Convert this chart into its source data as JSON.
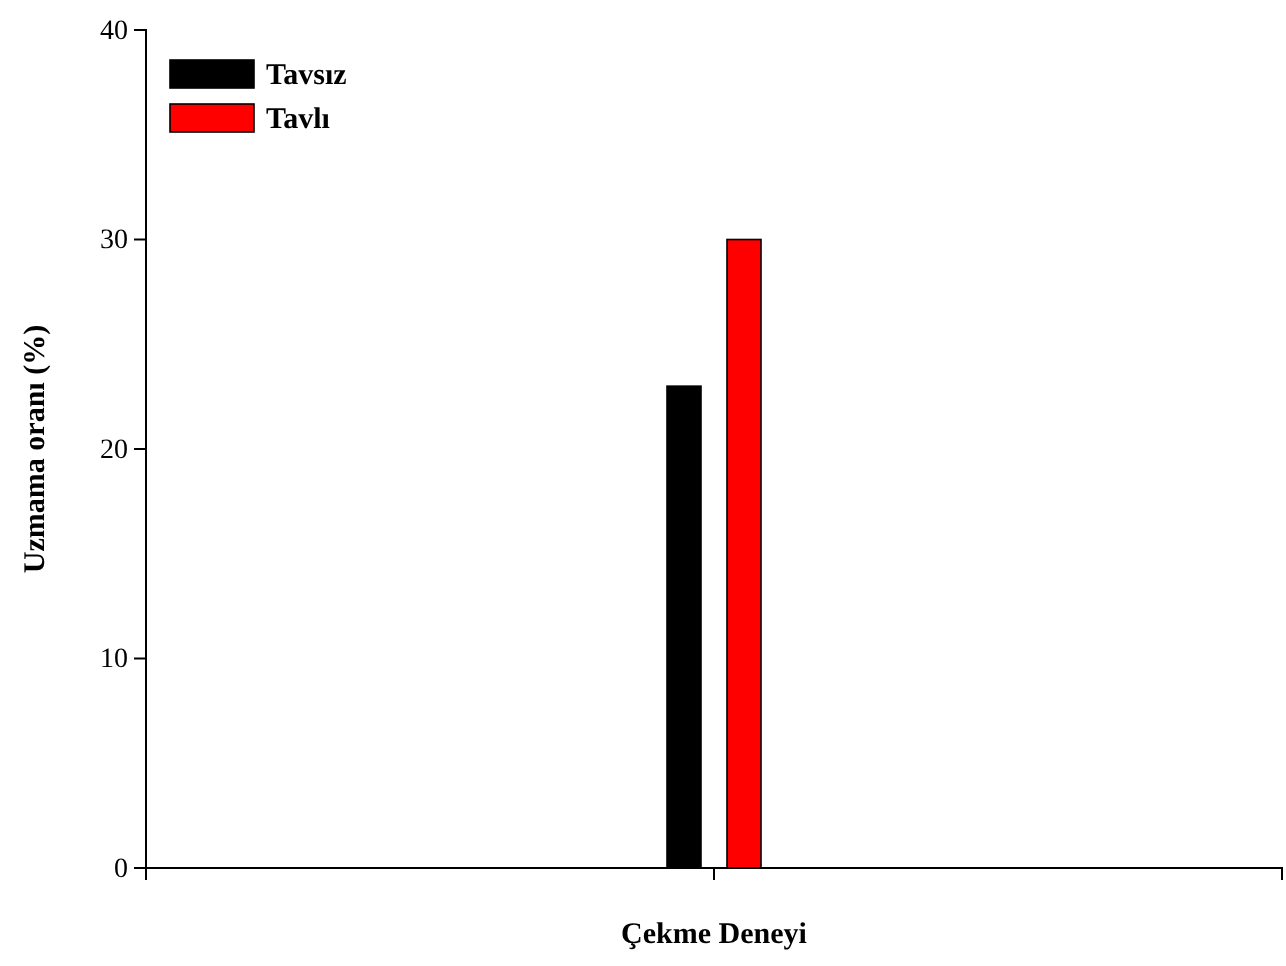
{
  "chart_data": {
    "type": "bar",
    "ylabel": "Uzmama oranı (%)",
    "categories": [
      "Çekme Deneyi"
    ],
    "series": [
      {
        "name": "Tavsız",
        "color": "#000000",
        "values": [
          23
        ]
      },
      {
        "name": "Tavlı",
        "color": "#ff0000",
        "values": [
          30
        ]
      }
    ],
    "ylim": [
      0,
      40
    ],
    "yticks": [
      0,
      10,
      20,
      30,
      40
    ],
    "legend": "top left",
    "grid": false
  }
}
